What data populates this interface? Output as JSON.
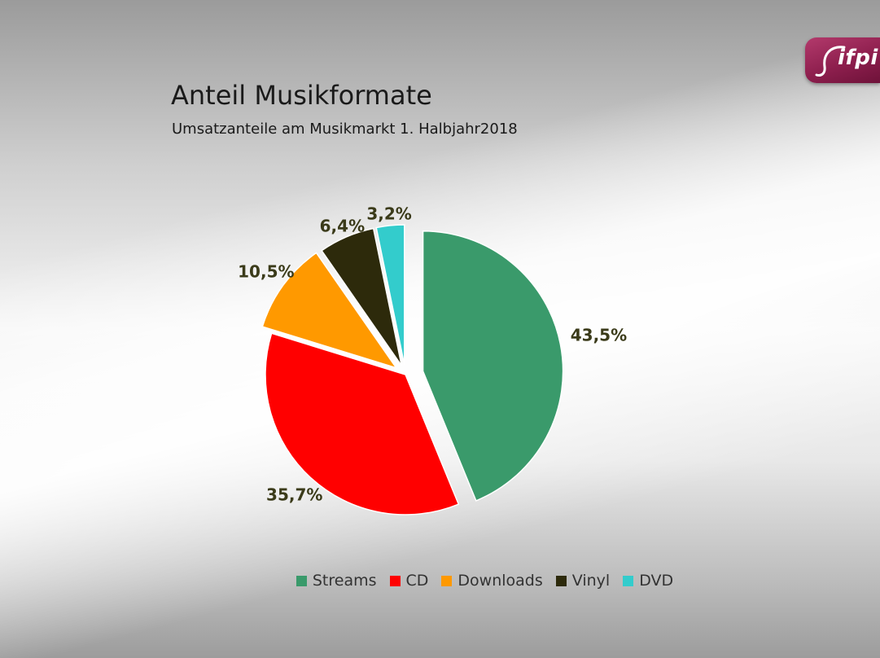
{
  "header": {
    "title": "Anteil Musikformate",
    "subtitle": "Umsatzanteile am Musikmarkt 1. Halbjahr2018"
  },
  "logo": {
    "text": "ifpi",
    "color": "#8e1f4e"
  },
  "chart_data": {
    "type": "pie",
    "title": "Anteil Musikformate",
    "subtitle": "Umsatzanteile am Musikmarkt 1. Halbjahr2018",
    "legend_position": "bottom",
    "exploded": true,
    "label_color": "#3b3b1a",
    "slices": [
      {
        "name": "Streams",
        "value": 43.5,
        "label": "43,5%",
        "color": "#3a9a6b"
      },
      {
        "name": "CD",
        "value": 35.7,
        "label": "35,7%",
        "color": "#ff0000"
      },
      {
        "name": "Downloads",
        "value": 10.5,
        "label": "10,5%",
        "color": "#ff9900"
      },
      {
        "name": "Vinyl",
        "value": 6.4,
        "label": "6,4%",
        "color": "#2d2a0b"
      },
      {
        "name": "DVD",
        "value": 3.2,
        "label": "3,2%",
        "color": "#33cccc"
      }
    ]
  }
}
